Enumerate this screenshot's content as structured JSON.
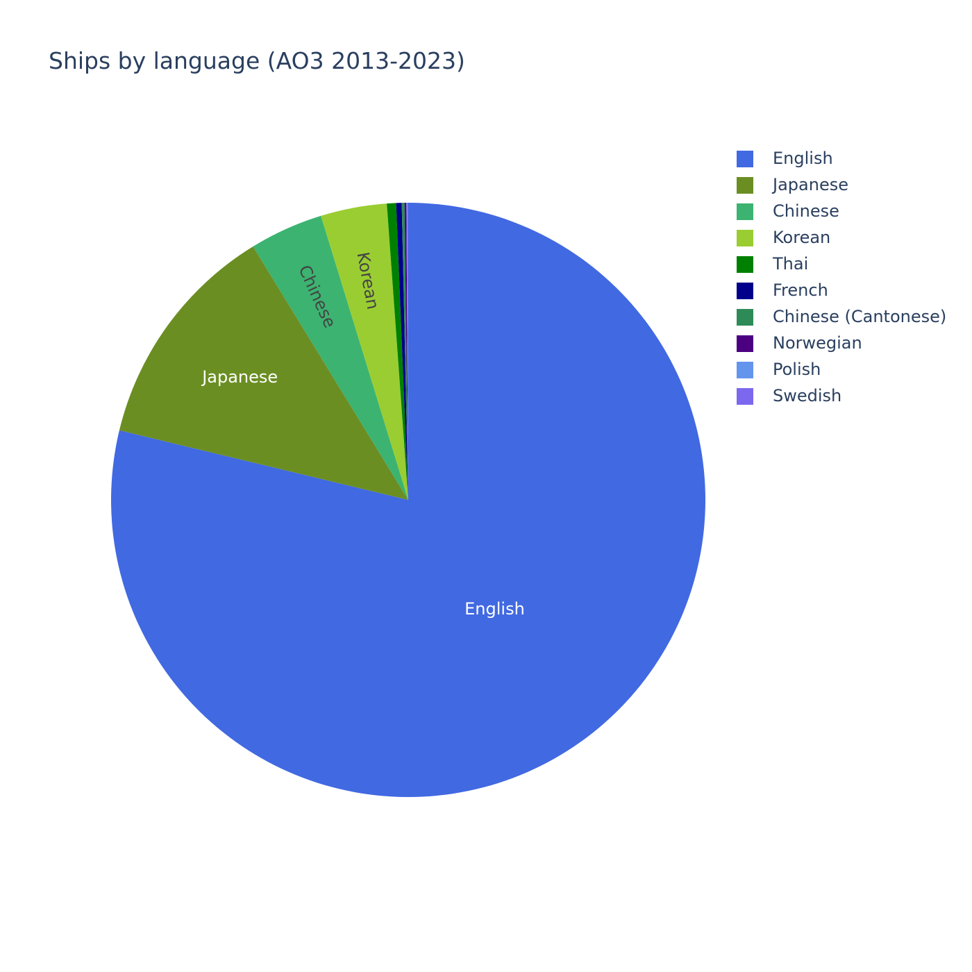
{
  "chart_data": {
    "type": "pie",
    "title": "Ships by language (AO3 2013-2023)",
    "direction": "clockwise",
    "start_angle": "top",
    "legend_position": "top-right",
    "slices": [
      {
        "label": "English",
        "value": 78.8,
        "color": "#4169e1",
        "show_label": true,
        "text_color": "#ffffff"
      },
      {
        "label": "Japanese",
        "value": 12.5,
        "color": "#6b8e23",
        "show_label": true,
        "text_color": "#ffffff"
      },
      {
        "label": "Chinese",
        "value": 4.0,
        "color": "#3cb371",
        "show_label": true,
        "text_color": "#444444"
      },
      {
        "label": "Korean",
        "value": 3.6,
        "color": "#9acd32",
        "show_label": true,
        "text_color": "#444444"
      },
      {
        "label": "Thai",
        "value": 0.5,
        "color": "#008000",
        "show_label": false,
        "text_color": "#ffffff"
      },
      {
        "label": "French",
        "value": 0.3,
        "color": "#00008b",
        "show_label": false,
        "text_color": "#ffffff"
      },
      {
        "label": "Chinese (Cantonese)",
        "value": 0.15,
        "color": "#2e8b57",
        "show_label": false,
        "text_color": "#ffffff"
      },
      {
        "label": "Norwegian",
        "value": 0.1,
        "color": "#4b0082",
        "show_label": false,
        "text_color": "#ffffff"
      },
      {
        "label": "Polish",
        "value": 0.05,
        "color": "#6495ed",
        "show_label": false,
        "text_color": "#ffffff"
      },
      {
        "label": "Swedish",
        "value": 0.05,
        "color": "#7b68ee",
        "show_label": false,
        "text_color": "#ffffff"
      }
    ]
  }
}
